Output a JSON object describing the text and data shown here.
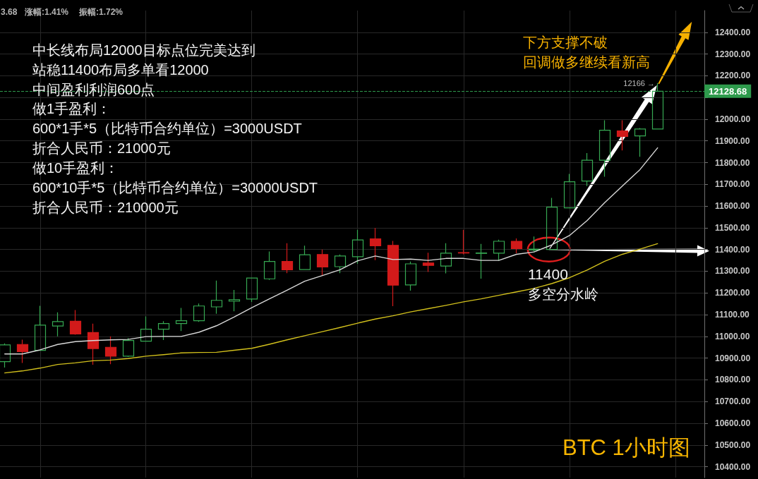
{
  "chart_data": {
    "type": "candlestick",
    "title": "BTC 1小时图",
    "categories": [
      null,
      null,
      null,
      null,
      null,
      null,
      null,
      null,
      null,
      null,
      null,
      null,
      null,
      null,
      null,
      null,
      null,
      null,
      null,
      null,
      null,
      null,
      null,
      null,
      null,
      null,
      null,
      null,
      null,
      null,
      null,
      null,
      null,
      null,
      null,
      null,
      null,
      null
    ],
    "series": [
      {
        "ohlc": [
          [
            10884,
            10968,
            10857,
            10961
          ],
          [
            10963,
            10985,
            10878,
            10930
          ],
          [
            10936,
            11141,
            10936,
            11052
          ],
          [
            11048,
            11111,
            11000,
            11068
          ],
          [
            11070,
            11121,
            11008,
            11011
          ],
          [
            11018,
            11059,
            10870,
            10944
          ],
          [
            10950,
            11000,
            10872,
            10909
          ],
          [
            10909,
            10992,
            10905,
            10981
          ],
          [
            10978,
            11092,
            10976,
            11033
          ],
          [
            11033,
            11070,
            10983,
            11059
          ],
          [
            11059,
            11131,
            11025,
            11072
          ],
          [
            11072,
            11151,
            11067,
            11140
          ],
          [
            11136,
            11257,
            11104,
            11166
          ],
          [
            11162,
            11214,
            11116,
            11169
          ],
          [
            11172,
            11269,
            11159,
            11269
          ],
          [
            11265,
            11391,
            11260,
            11345
          ],
          [
            11345,
            11429,
            11291,
            11307
          ],
          [
            11308,
            11418,
            11308,
            11376
          ],
          [
            11377,
            11400,
            11281,
            11320
          ],
          [
            11321,
            11377,
            11291,
            11370
          ],
          [
            11367,
            11491,
            11334,
            11444
          ],
          [
            11449,
            11499,
            11351,
            11417
          ],
          [
            11419,
            11440,
            11139,
            11236
          ],
          [
            11237,
            11345,
            11211,
            11334
          ],
          [
            11338,
            11385,
            11297,
            11327
          ],
          [
            11324,
            11429,
            11290,
            11383
          ],
          [
            11386,
            11491,
            11378,
            11384
          ],
          [
            11382,
            11426,
            11266,
            11384
          ],
          [
            11383,
            11445,
            11348,
            11438
          ],
          [
            11438,
            11451,
            11383,
            11404
          ],
          [
            11398,
            11460,
            11390,
            11402
          ],
          [
            11400,
            11638,
            11398,
            11595
          ],
          [
            11592,
            11748,
            11590,
            11712
          ],
          [
            11715,
            11844,
            11692,
            11811
          ],
          [
            11811,
            11995,
            11735,
            11949
          ],
          [
            11946,
            11995,
            11856,
            11921
          ],
          [
            11923,
            11959,
            11827,
            11955
          ],
          [
            11955,
            12166,
            11955,
            12128.68
          ]
        ],
        "colors": [
          "#36a852",
          "#d21a1a",
          "#36a852",
          "#36a852",
          "#d21a1a",
          "#d21a1a",
          "#d21a1a",
          "#36a852",
          "#36a852",
          "#36a852",
          "#36a852",
          "#36a852",
          "#36a852",
          "#36a852",
          "#36a852",
          "#36a852",
          "#d21a1a",
          "#36a852",
          "#d21a1a",
          "#36a852",
          "#36a852",
          "#d21a1a",
          "#d21a1a",
          "#36a852",
          "#d21a1a",
          "#36a852",
          "#d21a1a",
          "#36a852",
          "#36a852",
          "#d21a1a",
          "#36a852",
          "#36a852",
          "#36a852",
          "#36a852",
          "#36a852",
          "#d21a1a",
          "#36a852",
          "#36a852"
        ]
      },
      {
        "type": "line",
        "color": "#d8d8d8",
        "values": [
          10919,
          10919,
          10938,
          10963,
          10976,
          10981,
          10984,
          10986,
          10999,
          11000,
          11000,
          11019,
          11049,
          11089,
          11132,
          11173,
          11213,
          11254,
          11280,
          11307,
          11348,
          11370,
          11354,
          11356,
          11350,
          11359,
          11359,
          11350,
          11350,
          11378,
          11389,
          11421,
          11464,
          11533,
          11616,
          11692,
          11768,
          11868
        ]
      },
      {
        "type": "line",
        "color": "#d2c01c",
        "values": [
          10832,
          10841,
          10854,
          10871,
          10878,
          10888,
          10891,
          10898,
          10909,
          10916,
          10924,
          10926,
          10927,
          10936,
          10945,
          10964,
          10984,
          11003,
          11022,
          11041,
          11061,
          11080,
          11095,
          11113,
          11128,
          11143,
          11159,
          11173,
          11189,
          11205,
          11221,
          11243,
          11270,
          11305,
          11346,
          11378,
          11402,
          11427
        ]
      }
    ],
    "ylim": [
      10350,
      12500
    ],
    "yticks": [
      {
        "value": 10400,
        "label": "10400.00"
      },
      {
        "value": 10500,
        "label": "10500.00"
      },
      {
        "value": 10600,
        "label": "10600.00"
      },
      {
        "value": 10700,
        "label": "10700.00"
      },
      {
        "value": 10800,
        "label": "10800.00"
      },
      {
        "value": 10900,
        "label": "10900.00"
      },
      {
        "value": 11000,
        "label": "11000.00"
      },
      {
        "value": 11100,
        "label": "11100.00"
      },
      {
        "value": 11200,
        "label": "11200.00"
      },
      {
        "value": 11300,
        "label": "11300.00"
      },
      {
        "value": 11400,
        "label": "11400.00"
      },
      {
        "value": 11500,
        "label": "11500.00"
      },
      {
        "value": 11600,
        "label": "11600.00"
      },
      {
        "value": 11700,
        "label": "11700.00"
      },
      {
        "value": 11800,
        "label": "11800.00"
      },
      {
        "value": 11900,
        "label": "11900.00"
      },
      {
        "value": 12000,
        "label": "12000.00"
      },
      {
        "value": 12100,
        "label": null
      },
      {
        "value": 12200,
        "label": "12200.00"
      },
      {
        "value": 12300,
        "label": "12300.00"
      },
      {
        "value": 12400,
        "label": "12400.00"
      }
    ],
    "grid": true,
    "tick_labels": "y",
    "marker": "none",
    "ref_lines": [
      {
        "axis": "y",
        "value": 12128.68,
        "label": "12128.68",
        "color": "#2e9a4c",
        "line_style": "dashed"
      }
    ],
    "annotations": [
      "3.68",
      "涨幅:1.41%",
      "振幅:1.72%",
      "中长线布局12000目标点位完美达到",
      "站稳11400布局多单看12000",
      "中间盈利利润600点",
      "做1手盈利：",
      "600*1手*5（比特币合约单位）=3000USDT",
      "折合人民币：21000元",
      "做10手盈利：",
      "600*10手*5（比特币合约单位）=30000USDT",
      "折合人民币：210000元",
      "下方支撑不破",
      "回调做多继续看新高",
      "11400",
      "多空分水岭",
      "12166 →"
    ]
  }
}
